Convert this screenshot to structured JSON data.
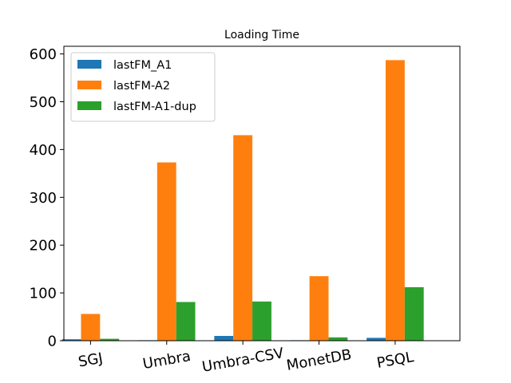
{
  "chart_data": {
    "type": "bar",
    "title": "Loading Time",
    "xlabel": "",
    "ylabel": "",
    "categories": [
      "SGJ",
      "Umbra",
      "Umbra-CSV",
      "MonetDB",
      "PSQL"
    ],
    "series": [
      {
        "name": "lastFM_A1",
        "color": "#1f77b4",
        "values": [
          3,
          1,
          10,
          1,
          6
        ]
      },
      {
        "name": "lastFM-A2",
        "color": "#ff7f0e",
        "values": [
          56,
          373,
          430,
          135,
          587
        ]
      },
      {
        "name": "lastFM-A1-dup",
        "color": "#2ca02c",
        "values": [
          4,
          81,
          82,
          7,
          112
        ]
      }
    ],
    "ylim": [
      0,
      616
    ],
    "yticks": [
      0,
      100,
      200,
      300,
      400,
      500,
      600
    ],
    "grid": false,
    "legend_position": "top-left"
  }
}
